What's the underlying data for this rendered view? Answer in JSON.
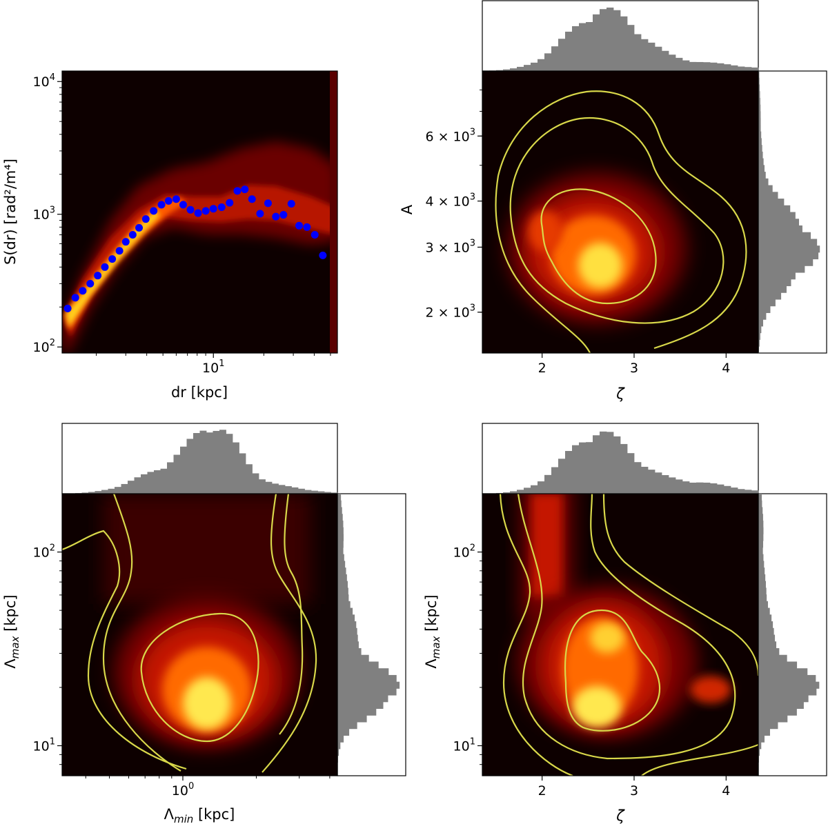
{
  "chart_data": [
    {
      "type": "scatter",
      "panel": "top-left",
      "xscale": "log",
      "yscale": "log",
      "xlabel": "dr [kpc]",
      "ylabel": "S(dr) [rad²/m⁴]",
      "xlim": [
        1.25,
        55
      ],
      "ylim": [
        90,
        12000
      ],
      "xticks": [
        {
          "value": 10,
          "base": "10",
          "exp": "1"
        }
      ],
      "yticks": [
        {
          "value": 100,
          "base": "10",
          "exp": "2"
        },
        {
          "value": 1000,
          "base": "10",
          "exp": "3"
        },
        {
          "value": 10000,
          "base": "10",
          "exp": "4"
        }
      ],
      "background": "density heatmap (hot colormap)",
      "marker_color": "#0000ff",
      "points": [
        [
          1.35,
          195
        ],
        [
          1.5,
          235
        ],
        [
          1.66,
          265
        ],
        [
          1.84,
          300
        ],
        [
          2.04,
          345
        ],
        [
          2.25,
          400
        ],
        [
          2.49,
          460
        ],
        [
          2.75,
          530
        ],
        [
          3.0,
          620
        ],
        [
          3.3,
          700
        ],
        [
          3.6,
          790
        ],
        [
          3.95,
          920
        ],
        [
          4.4,
          1060
        ],
        [
          4.9,
          1180
        ],
        [
          5.4,
          1260
        ],
        [
          6.0,
          1300
        ],
        [
          6.6,
          1180
        ],
        [
          7.3,
          1080
        ],
        [
          8.1,
          1020
        ],
        [
          9.0,
          1060
        ],
        [
          10.0,
          1100
        ],
        [
          11.2,
          1130
        ],
        [
          12.5,
          1220
        ],
        [
          13.9,
          1500
        ],
        [
          15.4,
          1540
        ],
        [
          17.0,
          1300
        ],
        [
          19.0,
          1010
        ],
        [
          21.2,
          1210
        ],
        [
          23.6,
          960
        ],
        [
          26.2,
          990
        ],
        [
          29.2,
          1200
        ],
        [
          32.5,
          820
        ],
        [
          36.2,
          800
        ],
        [
          40.3,
          700
        ],
        [
          45.0,
          490
        ]
      ]
    },
    {
      "type": "heatmap",
      "panel": "top-right",
      "xscale": "linear",
      "yscale": "log",
      "xlabel": "ζ",
      "ylabel": "A",
      "xlim": [
        1.35,
        4.35
      ],
      "ylim": [
        1550,
        9000
      ],
      "xticks": [
        {
          "value": 2,
          "label": "2"
        },
        {
          "value": 3,
          "label": "3"
        },
        {
          "value": 4,
          "label": "4"
        }
      ],
      "yticks": [
        {
          "value": 2000,
          "base": "2 × 10",
          "exp": "3"
        },
        {
          "value": 3000,
          "base": "3 × 10",
          "exp": "3"
        },
        {
          "value": 4000,
          "base": "4 × 10",
          "exp": "3"
        },
        {
          "value": 6000,
          "base": "6 × 10",
          "exp": "3"
        }
      ],
      "marginals": "histograms on top (ζ) and right (A)",
      "contour_color": "#d9d84a",
      "peak": {
        "x": 2.65,
        "y": 2700
      }
    },
    {
      "type": "heatmap",
      "panel": "bottom-left",
      "xscale": "log",
      "yscale": "log",
      "xlabel": "Λ_min [kpc]",
      "ylabel": "Λ_max [kpc]",
      "xlim": [
        0.32,
        4.3
      ],
      "ylim": [
        7,
        200
      ],
      "xticks": [
        {
          "value": 1,
          "base": "10",
          "exp": "0"
        }
      ],
      "yticks": [
        {
          "value": 10,
          "base": "10",
          "exp": "1"
        },
        {
          "value": 100,
          "base": "10",
          "exp": "2"
        }
      ],
      "marginals": "histograms on top (Λ_min) and right (Λ_max)",
      "contour_color": "#d9d84a",
      "peak": {
        "x": 1.05,
        "y": 15
      }
    },
    {
      "type": "heatmap",
      "panel": "bottom-right",
      "xscale": "linear",
      "yscale": "log",
      "xlabel": "ζ",
      "ylabel": "Λ_max [kpc]",
      "xlim": [
        1.35,
        4.35
      ],
      "ylim": [
        7,
        200
      ],
      "xticks": [
        {
          "value": 2,
          "label": "2"
        },
        {
          "value": 3,
          "label": "3"
        },
        {
          "value": 4,
          "label": "4"
        }
      ],
      "yticks": [
        {
          "value": 10,
          "base": "10",
          "exp": "1"
        },
        {
          "value": 100,
          "base": "10",
          "exp": "2"
        }
      ],
      "marginals": "histograms on top (ζ) and right (Λ_max)",
      "contour_color": "#d9d84a",
      "peak": {
        "x": 2.55,
        "y": 15
      }
    }
  ]
}
